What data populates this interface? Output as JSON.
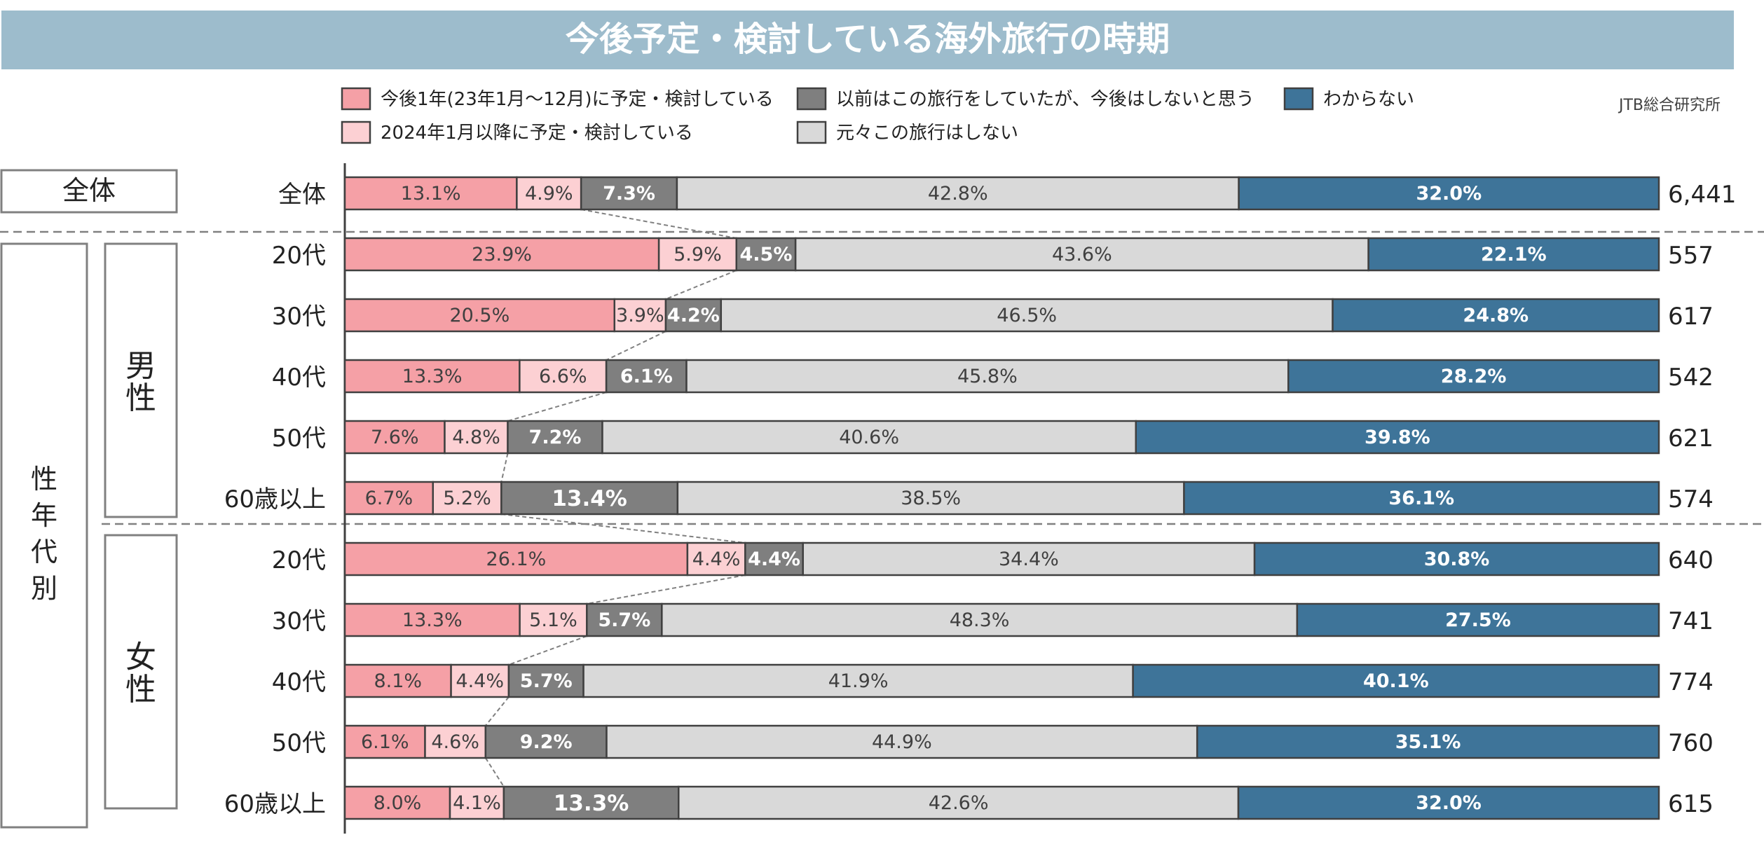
{
  "title": "今後予定・検討している海外旅行の時期",
  "source": "JTB総合研究所",
  "colors": {
    "title_bg": "#9dbccc",
    "within_year": "#f5a0a6",
    "after_2024": "#fcd0d3",
    "used_to": "#7f7f7f",
    "never": "#d9d9d9",
    "unknown": "#3e7499"
  },
  "group_labels": {
    "total": "全体",
    "sex_age": "性年代別",
    "male": "男性",
    "female": "女性"
  },
  "chart_data": {
    "type": "bar",
    "orientation": "horizontal",
    "stacked": true,
    "title": "今後予定・検討している海外旅行の時期",
    "categories": [
      "全体",
      "20代",
      "30代",
      "40代",
      "50代",
      "60歳以上",
      "20代",
      "30代",
      "40代",
      "50代",
      "60歳以上"
    ],
    "groups": [
      "全体",
      "男性",
      "男性",
      "男性",
      "男性",
      "男性",
      "女性",
      "女性",
      "女性",
      "女性",
      "女性"
    ],
    "sample_sizes": [
      "6,441",
      "557",
      "617",
      "542",
      "621",
      "574",
      "640",
      "741",
      "774",
      "760",
      "615"
    ],
    "unit": "%",
    "xlim": [
      0,
      100
    ],
    "legend_position": "top",
    "series": [
      {
        "name": "今後1年(23年1月～12月)に予定・検討している",
        "color": "#f5a0a6",
        "label_color": "#404040",
        "values": [
          13.1,
          23.9,
          20.5,
          13.3,
          7.6,
          6.7,
          26.1,
          13.3,
          8.1,
          6.1,
          8.0
        ]
      },
      {
        "name": "2024年1月以降に予定・検討している",
        "color": "#fcd0d3",
        "label_color": "#404040",
        "values": [
          4.9,
          5.9,
          3.9,
          6.6,
          4.8,
          5.2,
          4.4,
          5.1,
          4.4,
          4.6,
          4.1
        ]
      },
      {
        "name": "以前はこの旅行をしていたが、今後はしないと思う",
        "color": "#7f7f7f",
        "label_color": "#ffffff",
        "values": [
          7.3,
          4.5,
          4.2,
          6.1,
          7.2,
          13.4,
          4.4,
          5.7,
          5.7,
          9.2,
          13.3
        ]
      },
      {
        "name": "元々この旅行はしない",
        "color": "#d9d9d9",
        "label_color": "#404040",
        "values": [
          42.8,
          43.6,
          46.5,
          45.8,
          40.6,
          38.5,
          34.4,
          48.3,
          41.9,
          44.9,
          42.6
        ]
      },
      {
        "name": "わからない",
        "color": "#3e7499",
        "label_color": "#ffffff",
        "values": [
          32.0,
          22.1,
          24.8,
          28.2,
          39.8,
          36.1,
          30.8,
          27.5,
          40.1,
          35.1,
          32.0
        ]
      }
    ]
  }
}
